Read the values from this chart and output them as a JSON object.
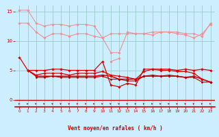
{
  "x": [
    0,
    1,
    2,
    3,
    4,
    5,
    6,
    7,
    8,
    9,
    10,
    11,
    12,
    13,
    14,
    15,
    16,
    17,
    18,
    19,
    20,
    21,
    22,
    23
  ],
  "series": [
    {
      "name": "line1_light_top",
      "color": "#f09090",
      "linewidth": 0.8,
      "marker": "D",
      "markersize": 1.8,
      "y": [
        15.2,
        15.2,
        13.0,
        12.5,
        12.8,
        12.8,
        12.5,
        12.8,
        12.8,
        12.5,
        10.5,
        11.2,
        11.2,
        11.2,
        11.2,
        11.2,
        11.5,
        11.5,
        11.5,
        11.5,
        11.2,
        11.2,
        10.8,
        13.0
      ]
    },
    {
      "name": "line2_light_mid",
      "color": "#f09090",
      "linewidth": 0.8,
      "marker": "D",
      "markersize": 1.8,
      "y": [
        13.0,
        13.0,
        11.5,
        10.5,
        11.2,
        11.2,
        10.8,
        11.2,
        11.2,
        10.8,
        10.5,
        8.0,
        8.0,
        11.5,
        11.2,
        11.2,
        11.0,
        11.5,
        11.5,
        11.2,
        11.0,
        10.5,
        11.2,
        12.8
      ]
    },
    {
      "name": "line3_light_spike",
      "color": "#f09090",
      "linewidth": 0.8,
      "marker": "D",
      "markersize": 1.8,
      "y": [
        null,
        null,
        null,
        null,
        null,
        null,
        null,
        null,
        null,
        null,
        null,
        6.5,
        7.0,
        null,
        null,
        null,
        null,
        null,
        null,
        null,
        null,
        null,
        null,
        null
      ]
    },
    {
      "name": "line4_red_spike",
      "color": "#dd0000",
      "linewidth": 0.9,
      "marker": "D",
      "markersize": 1.8,
      "y": [
        7.2,
        5.0,
        5.0,
        5.0,
        5.2,
        5.2,
        5.0,
        5.0,
        5.0,
        5.0,
        6.5,
        2.5,
        2.2,
        2.8,
        2.5,
        5.2,
        5.2,
        5.2,
        5.2,
        5.0,
        5.2,
        5.0,
        5.2,
        5.0
      ]
    },
    {
      "name": "line5_red_flat",
      "color": "#dd0000",
      "linewidth": 1.1,
      "marker": "D",
      "markersize": 1.8,
      "y": [
        null,
        5.0,
        4.0,
        4.0,
        4.0,
        4.0,
        4.0,
        4.0,
        4.0,
        4.0,
        4.2,
        4.0,
        3.5,
        3.5,
        3.5,
        4.0,
        4.0,
        4.0,
        4.0,
        4.0,
        3.8,
        4.0,
        3.5,
        3.0
      ]
    },
    {
      "name": "line6_red_upper",
      "color": "#dd0000",
      "linewidth": 0.9,
      "marker": "D",
      "markersize": 1.8,
      "y": [
        null,
        5.0,
        4.2,
        4.5,
        4.5,
        4.5,
        4.2,
        4.5,
        4.5,
        4.5,
        4.8,
        4.2,
        4.0,
        3.8,
        3.5,
        4.8,
        5.2,
        5.0,
        5.0,
        4.8,
        4.8,
        4.5,
        3.5,
        3.0
      ]
    },
    {
      "name": "line7_dark_lower",
      "color": "#aa0000",
      "linewidth": 0.8,
      "marker": "D",
      "markersize": 1.5,
      "y": [
        null,
        null,
        3.8,
        3.8,
        4.0,
        3.8,
        3.8,
        3.8,
        3.8,
        3.8,
        4.0,
        3.5,
        3.5,
        3.2,
        3.2,
        4.0,
        4.2,
        4.0,
        4.2,
        4.0,
        3.8,
        3.8,
        3.0,
        3.0
      ]
    }
  ],
  "xlabel": "Vent moyen/en rafales ( km/h )",
  "ylim": [
    -1.2,
    16
  ],
  "xlim": [
    -0.5,
    23.5
  ],
  "yticks": [
    0,
    5,
    10,
    15
  ],
  "xticks": [
    0,
    1,
    2,
    3,
    4,
    5,
    6,
    7,
    8,
    9,
    10,
    11,
    12,
    13,
    14,
    15,
    16,
    17,
    18,
    19,
    20,
    21,
    22,
    23
  ],
  "bg_color": "#cceeff",
  "grid_color": "#99cccc",
  "tick_color": "#cc0000",
  "label_color": "#cc0000",
  "hline_y": 0.0
}
